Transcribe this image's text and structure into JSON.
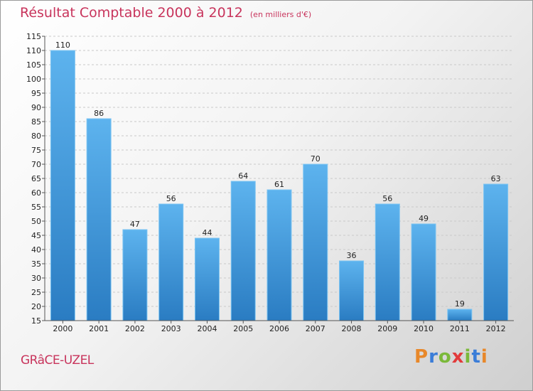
{
  "title": "Résultat Comptable 2000 à 2012",
  "unit": "(en milliers d'€)",
  "commune": "GRâCE-UZEL",
  "logo": {
    "letters": [
      "P",
      "r",
      "o",
      "x",
      "i",
      "t",
      "i"
    ],
    "colors": [
      "#e8882a",
      "#3b7dd8",
      "#7bb93a",
      "#e23b3b",
      "#7bb93a",
      "#3b7dd8",
      "#e8882a"
    ]
  },
  "chart_data": {
    "type": "bar",
    "categories": [
      "2000",
      "2001",
      "2002",
      "2003",
      "2004",
      "2005",
      "2006",
      "2007",
      "2008",
      "2009",
      "2010",
      "2011",
      "2012"
    ],
    "values": [
      110,
      86,
      47,
      56,
      44,
      64,
      61,
      70,
      36,
      56,
      49,
      19,
      63
    ],
    "ylim": [
      15,
      115
    ],
    "yticks": [
      15,
      20,
      25,
      30,
      35,
      40,
      45,
      50,
      55,
      60,
      65,
      70,
      75,
      80,
      85,
      90,
      95,
      100,
      105,
      110,
      115
    ],
    "grid": true,
    "bar_color": "#3a8fd6"
  }
}
